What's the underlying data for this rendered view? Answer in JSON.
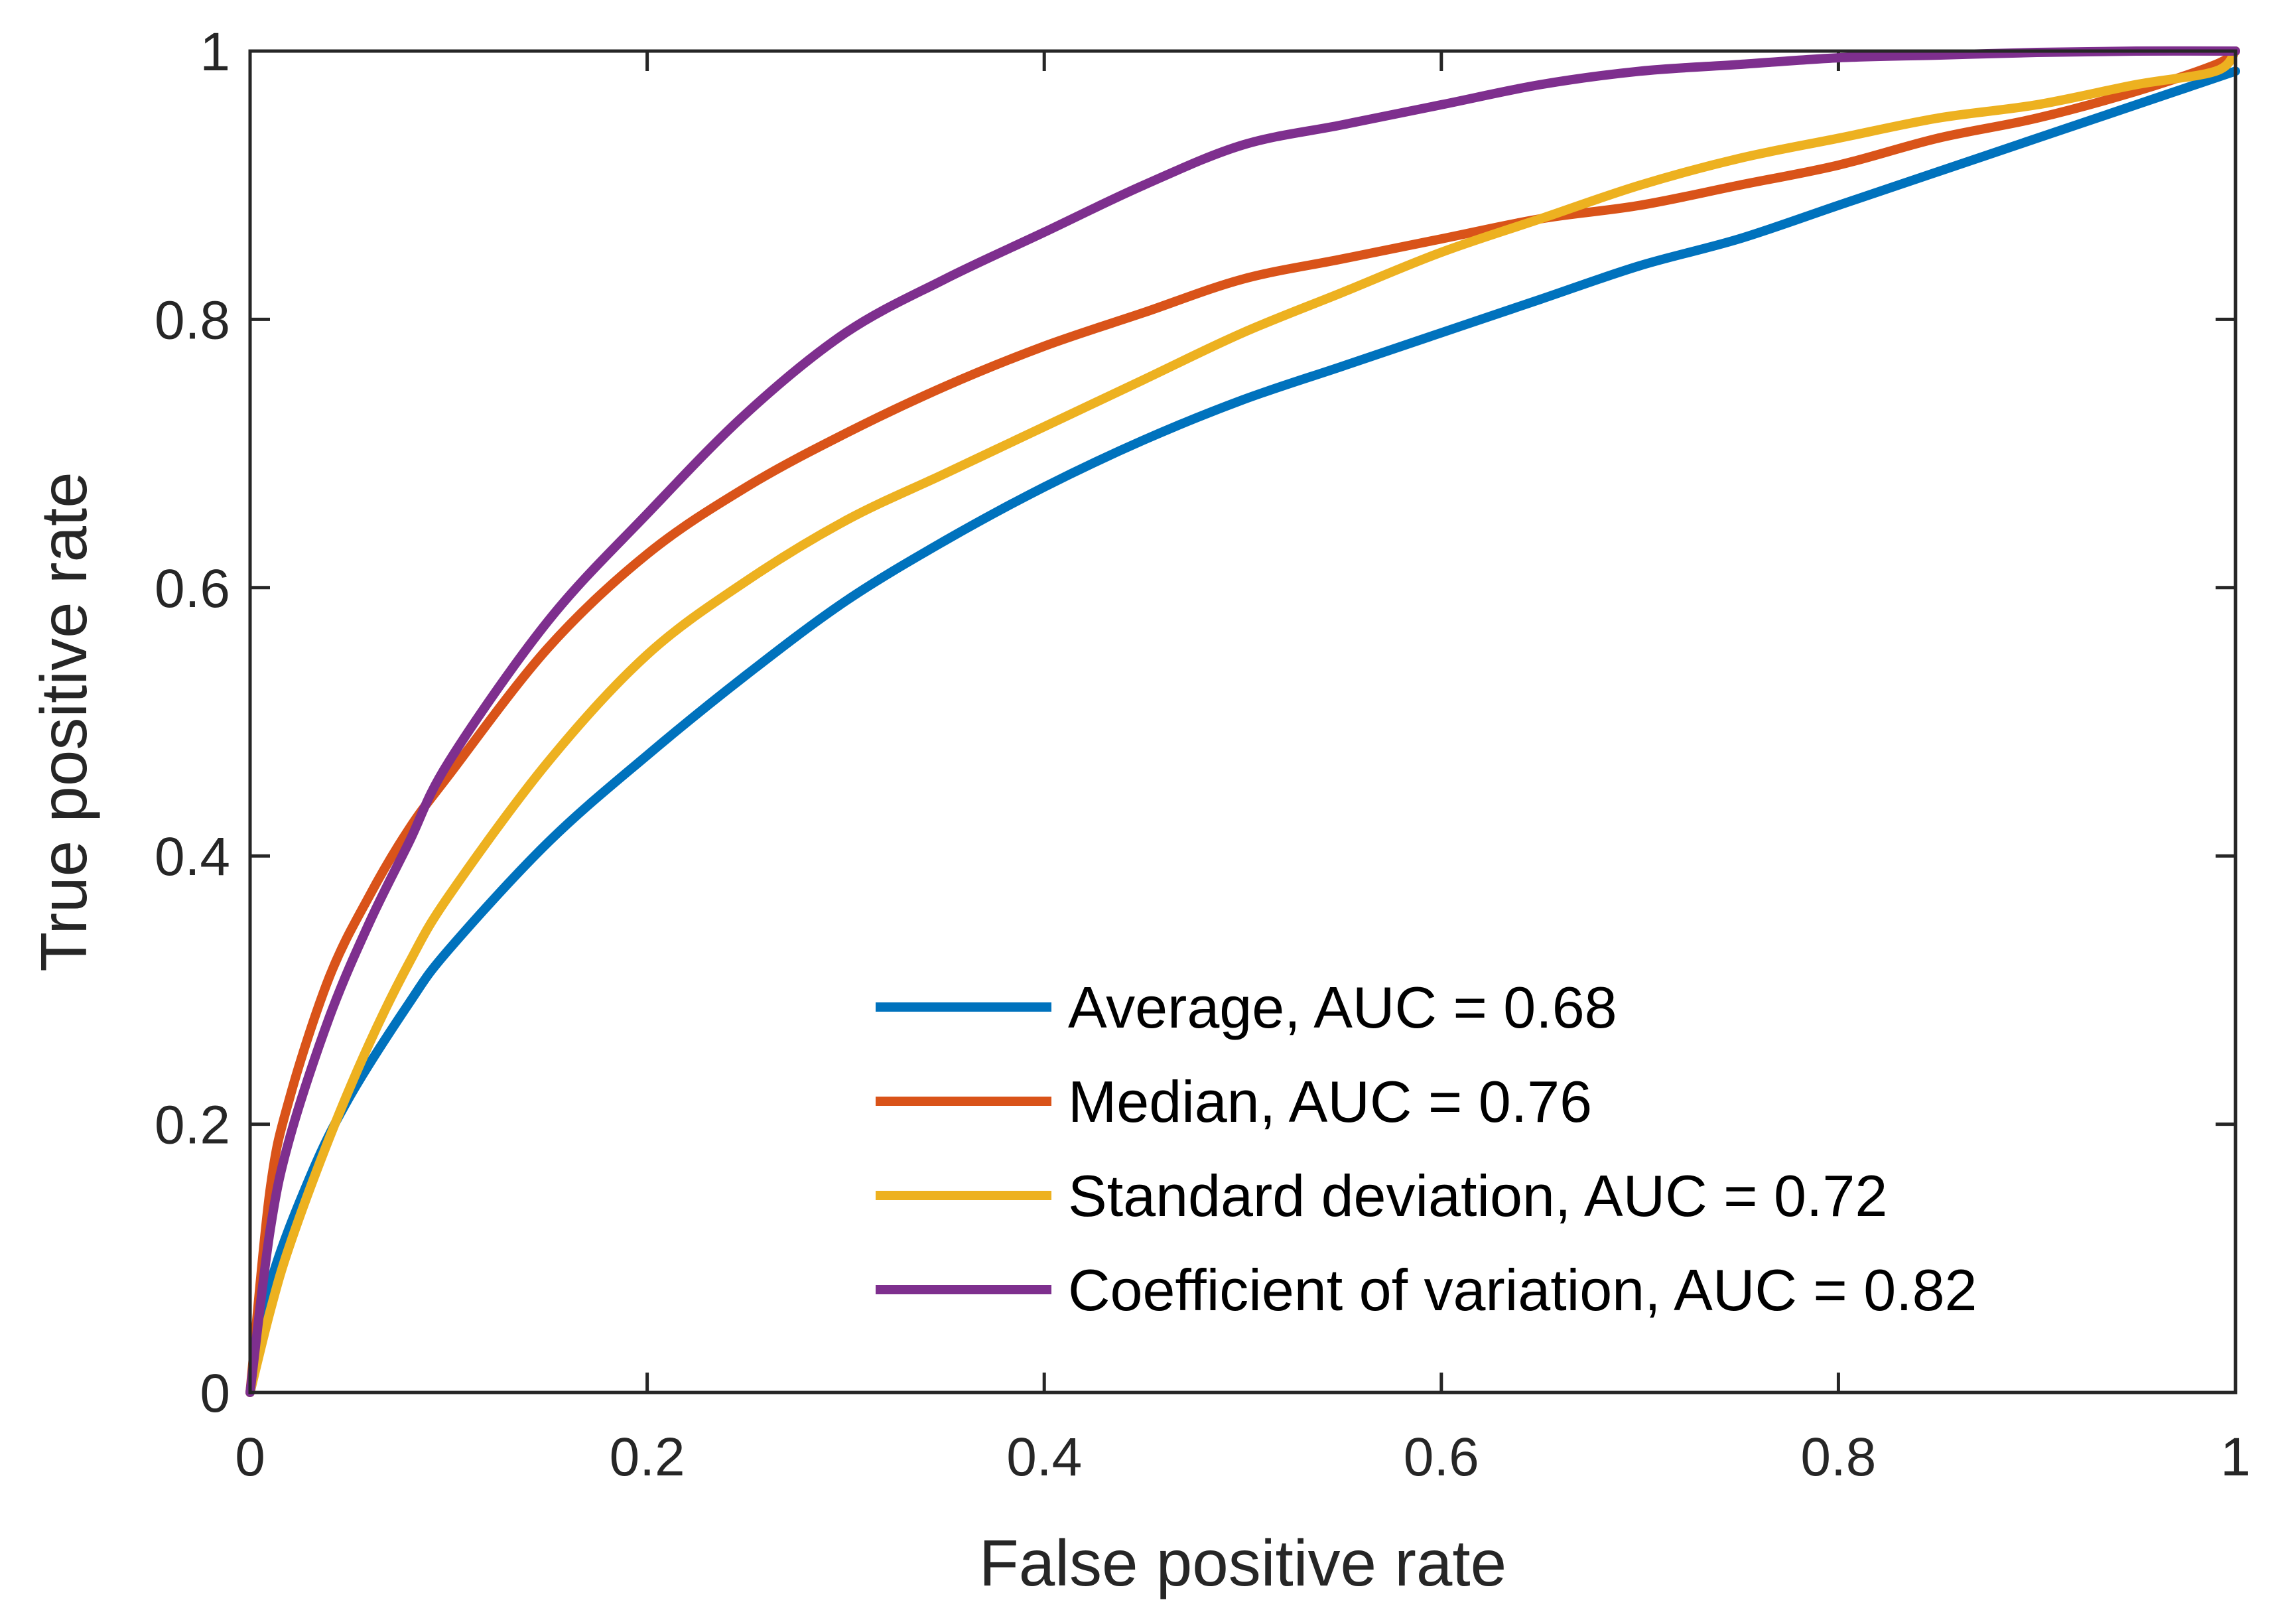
{
  "chart_data": {
    "type": "line",
    "title": "",
    "xlabel": "False positive rate",
    "ylabel": "True positive rate",
    "xlim": [
      0,
      1
    ],
    "ylim": [
      0,
      1
    ],
    "xticks": [
      0,
      0.2,
      0.4,
      0.6,
      0.8,
      1
    ],
    "yticks": [
      0,
      0.2,
      0.4,
      0.6,
      0.8,
      1
    ],
    "xtick_labels": [
      "0",
      "0.2",
      "0.4",
      "0.6",
      "0.8",
      "1"
    ],
    "ytick_labels": [
      "0",
      "0.2",
      "0.4",
      "0.6",
      "0.8",
      "1"
    ],
    "grid": false,
    "legend_position": "bottom-right",
    "series": [
      {
        "name": "Average, AUC = 0.68",
        "color": "#0072BD",
        "x": [
          0,
          0.01,
          0.03,
          0.05,
          0.08,
          0.1,
          0.15,
          0.2,
          0.25,
          0.3,
          0.35,
          0.4,
          0.45,
          0.5,
          0.55,
          0.6,
          0.65,
          0.7,
          0.75,
          0.8,
          0.85,
          0.9,
          0.95,
          1.0
        ],
        "y": [
          0,
          0.08,
          0.16,
          0.22,
          0.29,
          0.33,
          0.41,
          0.475,
          0.535,
          0.59,
          0.635,
          0.675,
          0.71,
          0.74,
          0.765,
          0.79,
          0.815,
          0.84,
          0.86,
          0.885,
          0.91,
          0.935,
          0.96,
          0.985
        ]
      },
      {
        "name": "Median, AUC = 0.76",
        "color": "#D95319",
        "x": [
          0,
          0.01,
          0.02,
          0.04,
          0.06,
          0.08,
          0.1,
          0.15,
          0.2,
          0.25,
          0.3,
          0.35,
          0.4,
          0.45,
          0.5,
          0.55,
          0.6,
          0.65,
          0.7,
          0.75,
          0.8,
          0.85,
          0.9,
          0.95,
          0.99,
          1.0
        ],
        "y": [
          0,
          0.15,
          0.22,
          0.31,
          0.37,
          0.42,
          0.46,
          0.555,
          0.625,
          0.675,
          0.715,
          0.75,
          0.78,
          0.805,
          0.83,
          0.845,
          0.86,
          0.875,
          0.885,
          0.9,
          0.915,
          0.935,
          0.95,
          0.97,
          0.99,
          1.0
        ]
      },
      {
        "name": "Standard deviation, AUC = 0.72",
        "color": "#EDB120",
        "x": [
          0,
          0.01,
          0.02,
          0.04,
          0.06,
          0.08,
          0.1,
          0.15,
          0.2,
          0.25,
          0.3,
          0.35,
          0.4,
          0.45,
          0.5,
          0.55,
          0.6,
          0.65,
          0.7,
          0.75,
          0.8,
          0.85,
          0.9,
          0.95,
          0.99,
          1.0
        ],
        "y": [
          0,
          0.06,
          0.11,
          0.19,
          0.26,
          0.32,
          0.37,
          0.47,
          0.55,
          0.605,
          0.65,
          0.685,
          0.72,
          0.755,
          0.79,
          0.82,
          0.85,
          0.875,
          0.9,
          0.92,
          0.935,
          0.95,
          0.96,
          0.975,
          0.985,
          1.0
        ]
      },
      {
        "name": "Coefficient of variation, AUC = 0.82",
        "color": "#7E2F8E",
        "x": [
          0,
          0.01,
          0.02,
          0.04,
          0.06,
          0.08,
          0.1,
          0.15,
          0.2,
          0.25,
          0.3,
          0.35,
          0.4,
          0.45,
          0.5,
          0.55,
          0.6,
          0.65,
          0.7,
          0.75,
          0.8,
          0.85,
          0.9,
          0.95,
          1.0
        ],
        "y": [
          0,
          0.12,
          0.19,
          0.28,
          0.35,
          0.41,
          0.47,
          0.575,
          0.655,
          0.73,
          0.79,
          0.83,
          0.865,
          0.9,
          0.93,
          0.945,
          0.96,
          0.975,
          0.985,
          0.99,
          0.995,
          0.997,
          0.999,
          1.0,
          1.0
        ]
      }
    ]
  }
}
